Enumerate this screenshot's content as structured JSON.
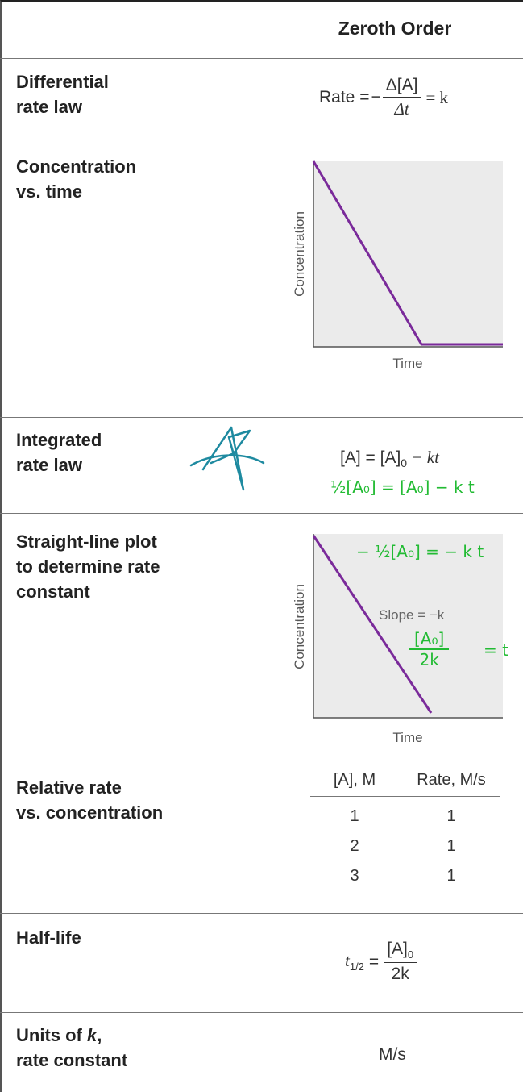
{
  "header": {
    "column_title": "Zeroth Order"
  },
  "rows": {
    "differential": {
      "label_line1": "Differential",
      "label_line2": "rate law",
      "rate_word": "Rate =",
      "minus": "−",
      "numerator": "Δ[A]",
      "denominator": "Δt",
      "equals_k": "= k"
    },
    "conc_time": {
      "label_line1": "Concentration",
      "label_line2": "vs. time",
      "y_axis": "Concentration",
      "x_axis": "Time"
    },
    "integrated": {
      "label_line1": "Integrated",
      "label_line2": "rate law",
      "equation_left": "[A] = [A]",
      "equation_sub": "0",
      "equation_right": " − kt",
      "handwritten": "½[A₀] = [A₀] − k t"
    },
    "straight_line": {
      "label_line1": "Straight-line plot",
      "label_line2": "to determine rate",
      "label_line3": "constant",
      "y_axis": "Concentration",
      "x_axis": "Time",
      "slope_text": "Slope = −k",
      "handwritten_top": "− ½[A₀] = − k t",
      "handwritten_num": "[A₀]",
      "handwritten_den": "2k",
      "handwritten_rhs": "= t"
    },
    "relative_rate": {
      "label_line1": "Relative rate",
      "label_line2": "vs. concentration",
      "col1_head": "[A], M",
      "col2_head": "Rate, M/s",
      "table_rows": [
        [
          "1",
          "1"
        ],
        [
          "2",
          "1"
        ],
        [
          "3",
          "1"
        ]
      ]
    },
    "half_life": {
      "label": "Half-life",
      "lhs": "t",
      "lhs_sub": "1/2",
      "equals": "=",
      "numerator": "[A]",
      "numerator_sub": "0",
      "denominator": "2k"
    },
    "units": {
      "label_line1": "Units of ",
      "label_k": "k",
      "label_comma": ",",
      "label_line2": "rate constant",
      "value": "M/s"
    }
  },
  "colors": {
    "plot_line": "#7a2a9a",
    "plot_bg": "#ebebeb",
    "ink": "#22bb33",
    "star": "#1e8aa0"
  }
}
